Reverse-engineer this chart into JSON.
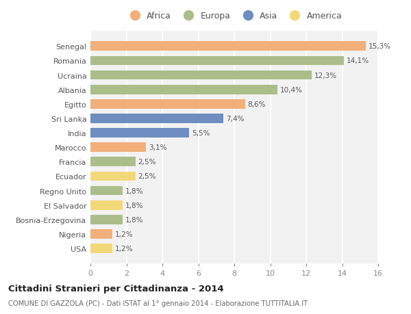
{
  "categories": [
    "Senegal",
    "Romania",
    "Ucraina",
    "Albania",
    "Egitto",
    "Sri Lanka",
    "India",
    "Marocco",
    "Francia",
    "Ecuador",
    "Regno Unito",
    "El Salvador",
    "Bosnia-Erzegovina",
    "Nigeria",
    "USA"
  ],
  "values": [
    15.3,
    14.1,
    12.3,
    10.4,
    8.6,
    7.4,
    5.5,
    3.1,
    2.5,
    2.5,
    1.8,
    1.8,
    1.8,
    1.2,
    1.2
  ],
  "labels": [
    "15,3%",
    "14,1%",
    "12,3%",
    "10,4%",
    "8,6%",
    "7,4%",
    "5,5%",
    "3,1%",
    "2,5%",
    "2,5%",
    "1,8%",
    "1,8%",
    "1,8%",
    "1,2%",
    "1,2%"
  ],
  "continents": [
    "Africa",
    "Europa",
    "Europa",
    "Europa",
    "Africa",
    "Asia",
    "Asia",
    "Africa",
    "Europa",
    "America",
    "Europa",
    "America",
    "Europa",
    "Africa",
    "America"
  ],
  "continent_colors": {
    "Africa": "#F2AF7A",
    "Europa": "#ABBE8A",
    "Asia": "#6E8DC0",
    "America": "#F2D878"
  },
  "legend_order": [
    "Africa",
    "Europa",
    "Asia",
    "America"
  ],
  "title": "Cittadini Stranieri per Cittadinanza - 2014",
  "subtitle": "COMUNE DI GAZZOLA (PC) - Dati ISTAT al 1° gennaio 2014 - Elaborazione TUTTITALIA.IT",
  "xlim": [
    0,
    16
  ],
  "xticks": [
    0,
    2,
    4,
    6,
    8,
    10,
    12,
    14,
    16
  ],
  "background_color": "#ffffff",
  "bar_background": "#f2f2f2"
}
